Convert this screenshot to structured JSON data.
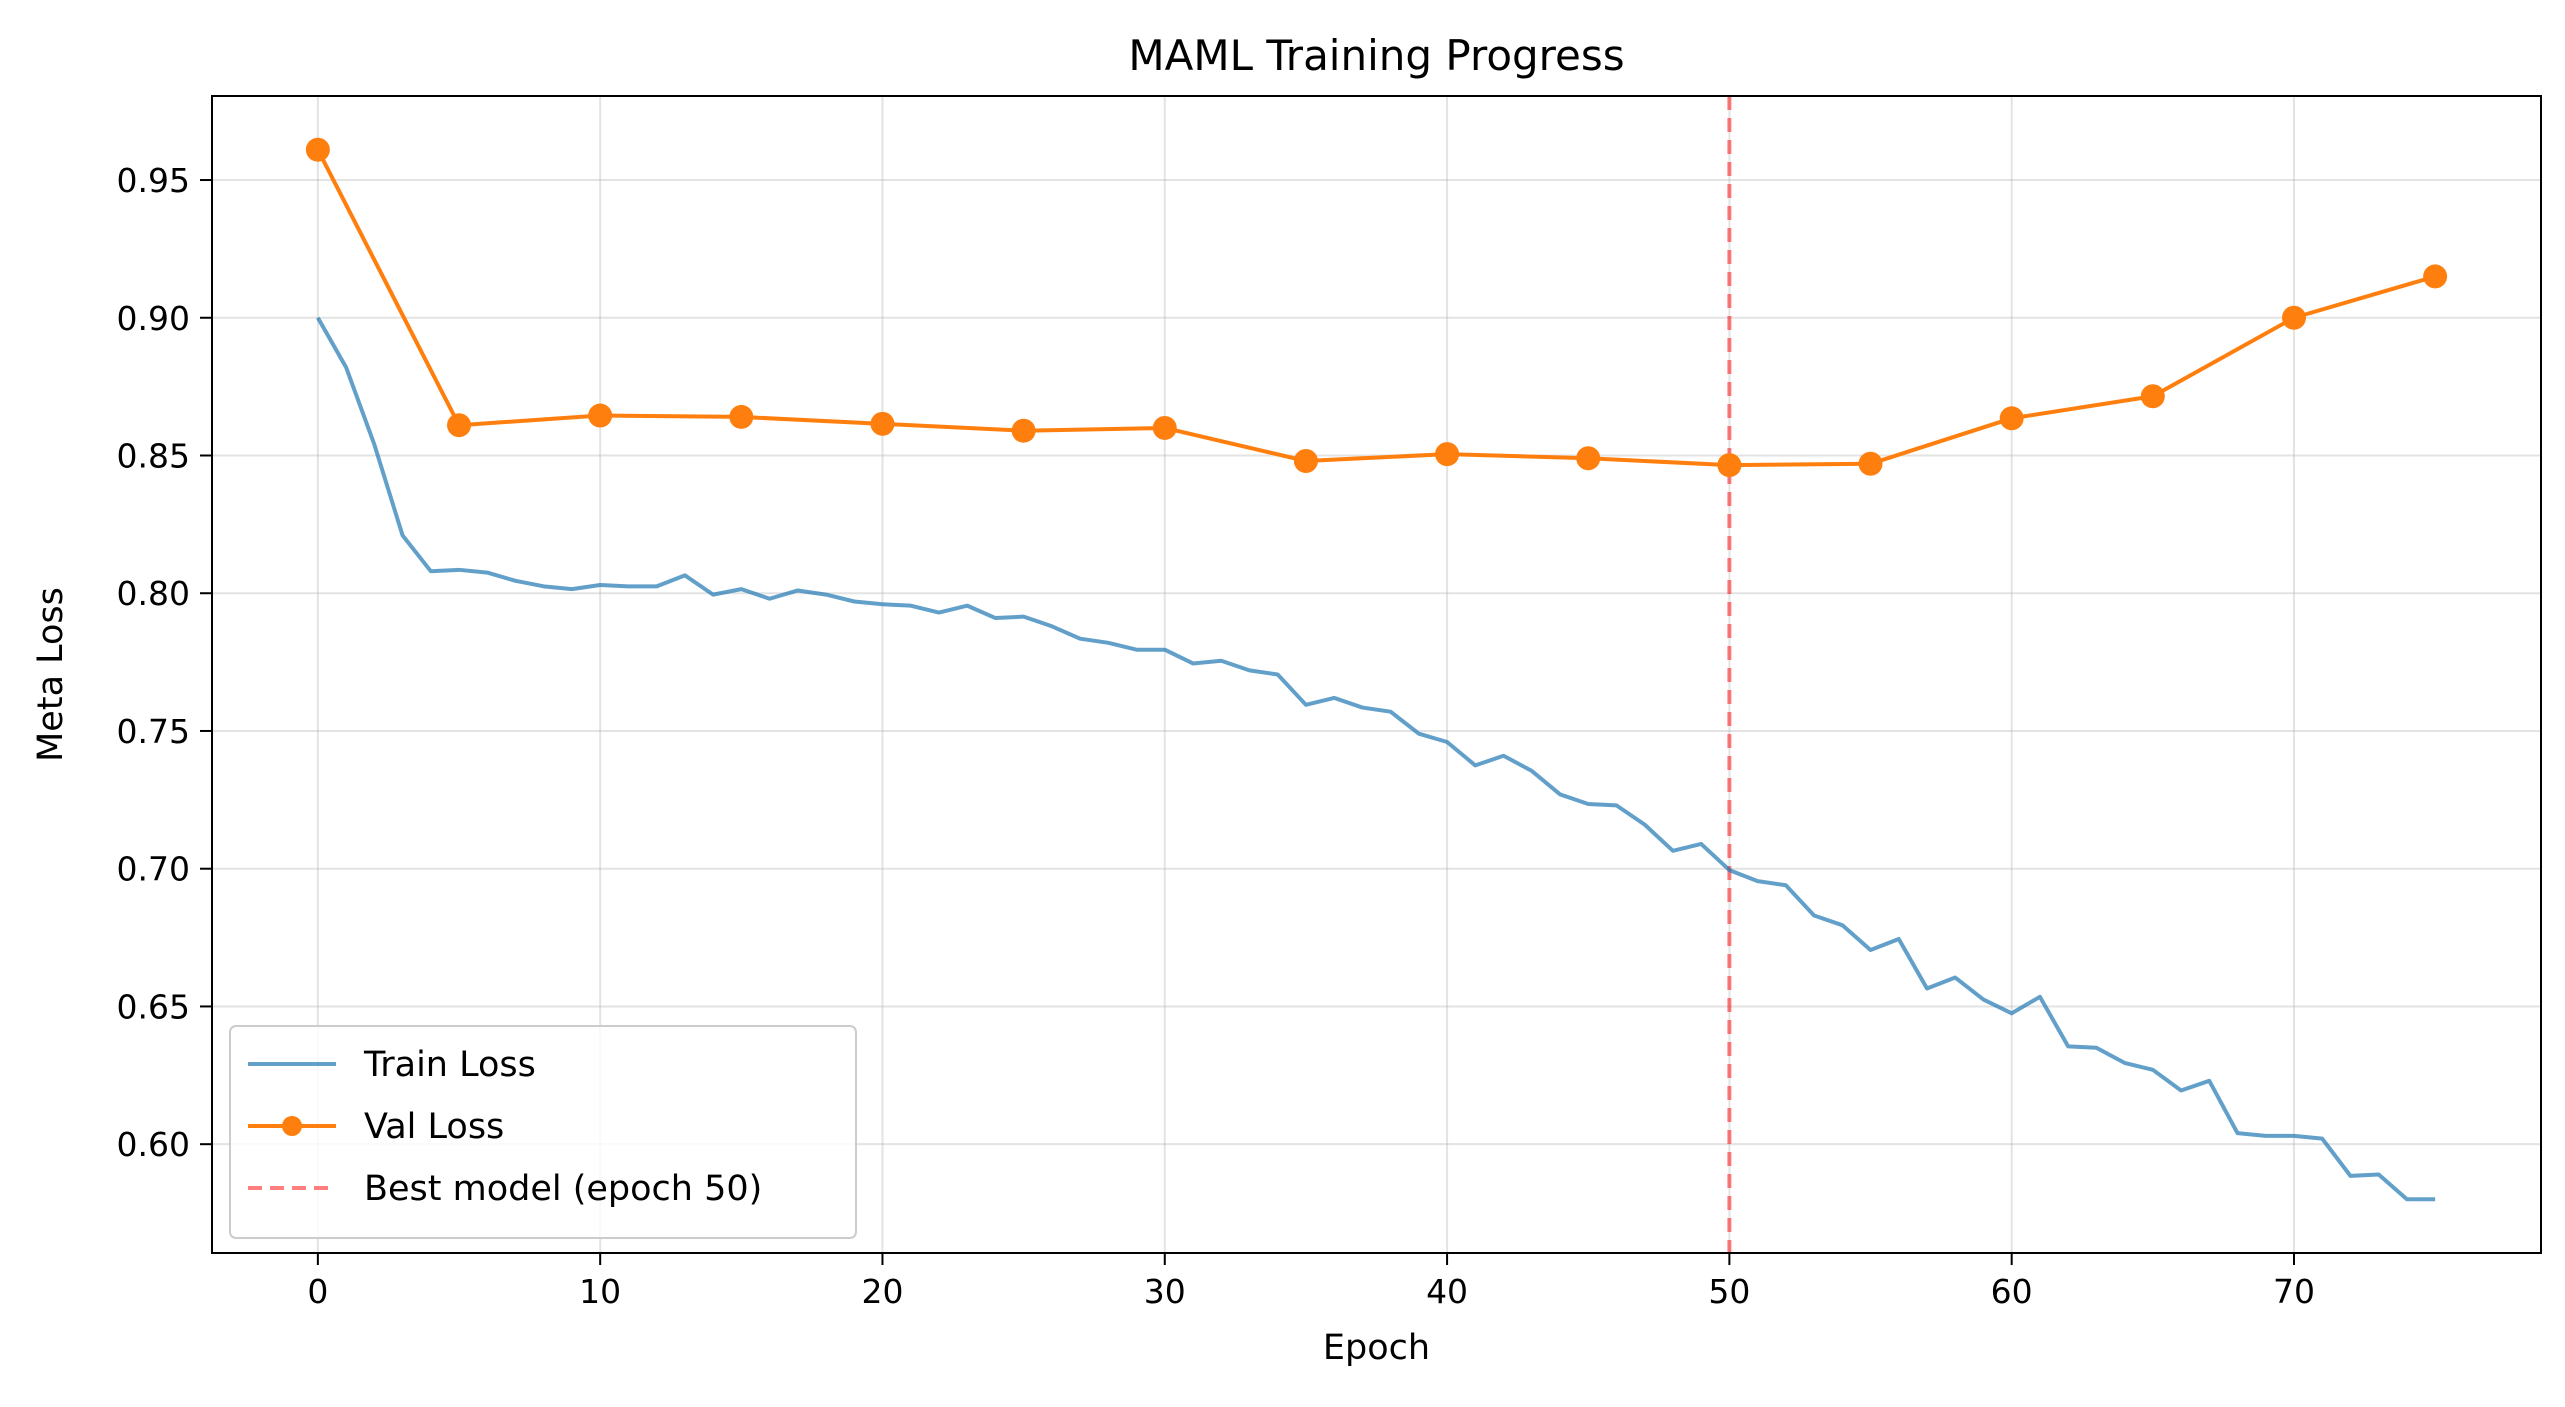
{
  "chart_data": {
    "type": "line",
    "title": "MAML Training Progress",
    "xlabel": "Epoch",
    "ylabel": "Meta Loss",
    "xlim": [
      -3.75,
      78.75
    ],
    "ylim": [
      0.5605,
      0.9805
    ],
    "xticks": [
      0,
      10,
      20,
      30,
      40,
      50,
      60,
      70
    ],
    "yticks": [
      0.6,
      0.65,
      0.7,
      0.75,
      0.8,
      0.85,
      0.9,
      0.95
    ],
    "ytick_labels": [
      "0.60",
      "0.65",
      "0.70",
      "0.75",
      "0.80",
      "0.85",
      "0.90",
      "0.95"
    ],
    "grid": true,
    "legend_position": "lower-left",
    "series": [
      {
        "name": "Train Loss",
        "color": "#1f77b4",
        "style": "solid",
        "x": [
          0,
          1,
          2,
          3,
          4,
          5,
          6,
          7,
          8,
          9,
          10,
          11,
          12,
          13,
          14,
          15,
          16,
          17,
          18,
          19,
          20,
          21,
          22,
          23,
          24,
          25,
          26,
          27,
          28,
          29,
          30,
          31,
          32,
          33,
          34,
          35,
          36,
          37,
          38,
          39,
          40,
          41,
          42,
          43,
          44,
          45,
          46,
          47,
          48,
          49,
          50,
          51,
          52,
          53,
          54,
          55,
          56,
          57,
          58,
          59,
          60,
          61,
          62,
          63,
          64,
          65,
          66,
          67,
          68,
          69,
          70,
          71,
          72,
          73,
          74,
          75
        ],
        "y": [
          0.9,
          0.882,
          0.854,
          0.821,
          0.808,
          0.8085,
          0.8075,
          0.8045,
          0.8025,
          0.8015,
          0.803,
          0.8025,
          0.8025,
          0.8065,
          0.7995,
          0.8015,
          0.798,
          0.801,
          0.7995,
          0.797,
          0.796,
          0.7955,
          0.793,
          0.7955,
          0.791,
          0.7915,
          0.788,
          0.7835,
          0.782,
          0.7795,
          0.7795,
          0.7745,
          0.7755,
          0.772,
          0.7705,
          0.7595,
          0.762,
          0.7585,
          0.757,
          0.749,
          0.746,
          0.7375,
          0.741,
          0.7355,
          0.727,
          0.7235,
          0.723,
          0.716,
          0.7065,
          0.709,
          0.6995,
          0.6955,
          0.694,
          0.683,
          0.6795,
          0.6705,
          0.6745,
          0.6565,
          0.6605,
          0.6525,
          0.6475,
          0.6535,
          0.6355,
          0.635,
          0.6295,
          0.627,
          0.6195,
          0.623,
          0.604,
          0.603,
          0.603,
          0.602,
          0.5885,
          0.589,
          0.58,
          0.58
        ]
      },
      {
        "name": "Val Loss",
        "color": "#ff7f0e",
        "style": "solid-with-circles",
        "x": [
          0,
          5,
          10,
          15,
          20,
          25,
          30,
          35,
          40,
          45,
          50,
          55,
          60,
          65,
          70,
          75
        ],
        "y": [
          0.961,
          0.861,
          0.8645,
          0.864,
          0.8615,
          0.859,
          0.86,
          0.848,
          0.8505,
          0.849,
          0.8465,
          0.847,
          0.8635,
          0.8715,
          0.9,
          0.915
        ]
      }
    ],
    "reference_line": {
      "name": "Best model (epoch 50)",
      "orientation": "vertical",
      "x": 50,
      "color": "#ff0000",
      "style": "dashed"
    }
  }
}
